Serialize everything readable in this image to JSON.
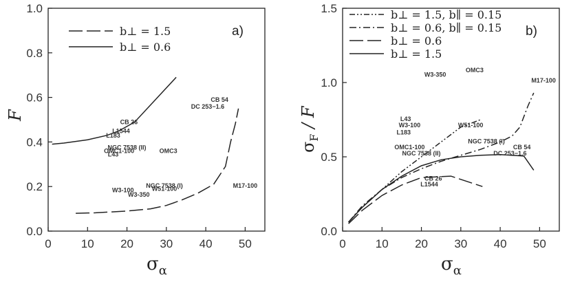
{
  "chart_data": [
    {
      "type": "line",
      "panel_label": "a)",
      "xlabel": "σ",
      "xlabel_sub": "α",
      "ylabel": "F",
      "xlim": [
        0,
        55
      ],
      "ylim": [
        0,
        1.0
      ],
      "xticks": [
        "0",
        "10",
        "20",
        "30",
        "40",
        "50"
      ],
      "yticks": [
        "0.0",
        "0.2",
        "0.4",
        "0.6",
        "0.8",
        "1.0"
      ],
      "legend_placement": "top-left",
      "series": [
        {
          "legend": "b⊥ = 1.5",
          "style": "long-dash",
          "points": [
            [
              7,
              0.08
            ],
            [
              12,
              0.082
            ],
            [
              20,
              0.09
            ],
            [
              26,
              0.1
            ],
            [
              30,
              0.115
            ],
            [
              34,
              0.14
            ],
            [
              38,
              0.17
            ],
            [
              42,
              0.21
            ],
            [
              45,
              0.29
            ],
            [
              46.3,
              0.4
            ],
            [
              47.5,
              0.48
            ],
            [
              48.3,
              0.55
            ]
          ]
        },
        {
          "legend": "b⊥ = 0.6",
          "style": "solid",
          "points": [
            [
              1,
              0.39
            ],
            [
              4,
              0.395
            ],
            [
              10,
              0.41
            ],
            [
              15,
              0.43
            ],
            [
              18,
              0.45
            ],
            [
              21,
              0.48
            ],
            [
              22,
              0.49
            ],
            [
              32.5,
              0.69
            ]
          ]
        }
      ],
      "annotations": [
        {
          "text": "CB 26",
          "x": 20.5,
          "y": 0.48
        },
        {
          "text": "L1544",
          "x": 18.5,
          "y": 0.44
        },
        {
          "text": "L183",
          "x": 16.5,
          "y": 0.42
        },
        {
          "text": "CB 54",
          "x": 43.5,
          "y": 0.58
        },
        {
          "text": "DC 253−1.6",
          "x": 40.5,
          "y": 0.55
        },
        {
          "text": "NGC 7538 (II)",
          "x": 20,
          "y": 0.365
        },
        {
          "text": "OMC1-100",
          "x": 18,
          "y": 0.35
        },
        {
          "text": "L43",
          "x": 16.5,
          "y": 0.335
        },
        {
          "text": "OMC3",
          "x": 30.5,
          "y": 0.35
        },
        {
          "text": "NGC 7538 (I)",
          "x": 29.5,
          "y": 0.195
        },
        {
          "text": "W51-100",
          "x": 29.5,
          "y": 0.18
        },
        {
          "text": "W3-100",
          "x": 19,
          "y": 0.175
        },
        {
          "text": "W3-350",
          "x": 23,
          "y": 0.155
        },
        {
          "text": "M17-100",
          "x": 50,
          "y": 0.195
        }
      ]
    },
    {
      "type": "line",
      "panel_label": "b)",
      "xlabel": "σ",
      "xlabel_sub": "α",
      "ylabel": "σ",
      "ylabel_sub": "F",
      "ylabel_rest": " / F",
      "xlim": [
        0,
        55
      ],
      "ylim": [
        0,
        1.5
      ],
      "xticks": [
        "0",
        "10",
        "20",
        "30",
        "40",
        "50"
      ],
      "yticks": [
        "0.0",
        "0.5",
        "1.0",
        "1.5"
      ],
      "legend_placement": "top-left",
      "series": [
        {
          "legend": "b⊥ = 1.5, b∥ = 0.15",
          "style": "dash-dot-dot",
          "points": [
            [
              1.5,
              0.06
            ],
            [
              5,
              0.16
            ],
            [
              10,
              0.28
            ],
            [
              15,
              0.4
            ],
            [
              20,
              0.5
            ],
            [
              25,
              0.6
            ],
            [
              30,
              0.7
            ],
            [
              35,
              0.75
            ]
          ]
        },
        {
          "legend": "b⊥ = 0.6, b∥ = 0.15",
          "style": "dash-dot",
          "points": [
            [
              1.5,
              0.06
            ],
            [
              5,
              0.17
            ],
            [
              10,
              0.28
            ],
            [
              15,
              0.36
            ],
            [
              20,
              0.42
            ],
            [
              25,
              0.47
            ],
            [
              30,
              0.51
            ],
            [
              35,
              0.55
            ],
            [
              40,
              0.6
            ],
            [
              43,
              0.64
            ],
            [
              45,
              0.7
            ],
            [
              47,
              0.84
            ],
            [
              48.5,
              0.93
            ]
          ]
        },
        {
          "legend": "b⊥ = 0.6",
          "style": "long-dash",
          "points": [
            [
              1.5,
              0.05
            ],
            [
              5,
              0.14
            ],
            [
              10,
              0.24
            ],
            [
              15,
              0.31
            ],
            [
              20,
              0.36
            ],
            [
              27.5,
              0.37
            ],
            [
              35.5,
              0.3
            ]
          ]
        },
        {
          "legend": "b⊥ = 1.5",
          "style": "solid",
          "points": [
            [
              1.5,
              0.06
            ],
            [
              5,
              0.16
            ],
            [
              10,
              0.28
            ],
            [
              15,
              0.37
            ],
            [
              20,
              0.44
            ],
            [
              25,
              0.48
            ],
            [
              30,
              0.5
            ],
            [
              35,
              0.51
            ],
            [
              40,
              0.515
            ],
            [
              46,
              0.505
            ],
            [
              48.5,
              0.41
            ]
          ]
        }
      ],
      "annotations": [
        {
          "text": "W3-350",
          "x": 23.5,
          "y": 1.04
        },
        {
          "text": "OMC3",
          "x": 33.5,
          "y": 1.07
        },
        {
          "text": "M17-100",
          "x": 51,
          "y": 1.0
        },
        {
          "text": "L43",
          "x": 16,
          "y": 0.74
        },
        {
          "text": "W3-100",
          "x": 17,
          "y": 0.7
        },
        {
          "text": "L183",
          "x": 15.5,
          "y": 0.65
        },
        {
          "text": "W51-100",
          "x": 32.5,
          "y": 0.7
        },
        {
          "text": "OMC1-100",
          "x": 17,
          "y": 0.55
        },
        {
          "text": "NGC 7538 (II)",
          "x": 20,
          "y": 0.51
        },
        {
          "text": "NGC 7538 (I)",
          "x": 36.5,
          "y": 0.59
        },
        {
          "text": "CB 54",
          "x": 45.5,
          "y": 0.55
        },
        {
          "text": "DC 253−1.6",
          "x": 42.5,
          "y": 0.51
        },
        {
          "text": "CB 26",
          "x": 23,
          "y": 0.34
        },
        {
          "text": "L1544",
          "x": 22,
          "y": 0.3
        }
      ]
    }
  ]
}
